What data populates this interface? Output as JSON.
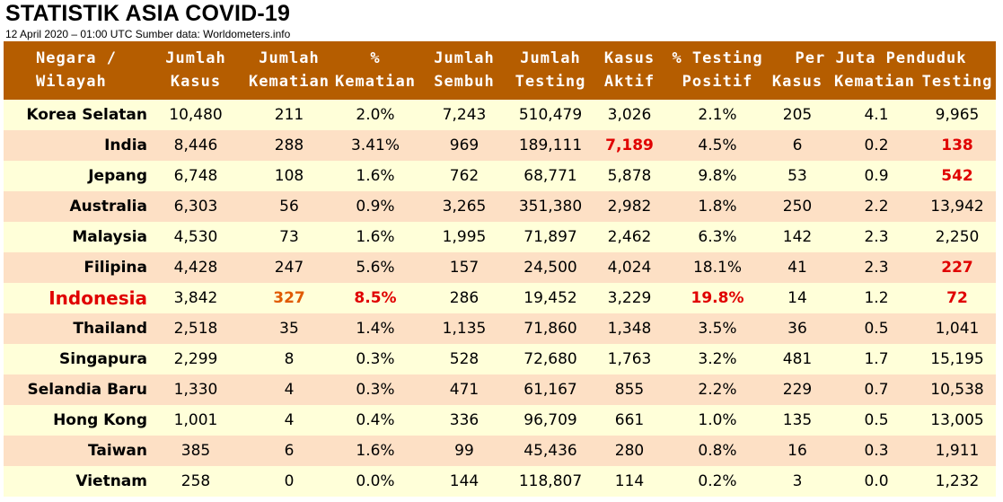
{
  "title": "STATISTIK ASIA COVID-19",
  "subtitle": "12 April 2020 – 01:00 UTC   Sumber data: Worldometers.info",
  "colors": {
    "header_bg": "#b55d00",
    "row_odd": "#ffffd9",
    "row_even": "#fde0c5",
    "highlight_red": "#e00000",
    "highlight_orange": "#e05a00"
  },
  "header": {
    "country": [
      "Negara /",
      "Wilayah"
    ],
    "cases": [
      "Jumlah",
      "Kasus"
    ],
    "deaths": [
      "Jumlah",
      "Kematian"
    ],
    "death_pct": [
      "%",
      "Kematian"
    ],
    "recovered": [
      "Jumlah",
      "Sembuh"
    ],
    "tests": [
      "Jumlah",
      "Testing"
    ],
    "active": [
      "Kasus",
      "Aktif"
    ],
    "positive_pct": [
      "% Testing",
      "Positif"
    ],
    "per_million_title": "Per Juta Penduduk",
    "pm_cases": "Kasus",
    "pm_deaths": "Kematian",
    "pm_tests": "Testing"
  },
  "rows": [
    {
      "country": "Korea Selatan",
      "cases": "10,480",
      "deaths": "211",
      "death_pct": "2.0%",
      "recovered": "7,243",
      "tests": "510,479",
      "active": "3,026",
      "positive_pct": "2.1%",
      "pm_cases": "205",
      "pm_deaths": "4.1",
      "pm_tests": "9,965"
    },
    {
      "country": "India",
      "cases": "8,446",
      "deaths": "288",
      "death_pct": "3.41%",
      "recovered": "969",
      "tests": "189,111",
      "active": "7,189",
      "positive_pct": "4.5%",
      "pm_cases": "6",
      "pm_deaths": "0.2",
      "pm_tests": "138"
    },
    {
      "country": "Jepang",
      "cases": "6,748",
      "deaths": "108",
      "death_pct": "1.6%",
      "recovered": "762",
      "tests": "68,771",
      "active": "5,878",
      "positive_pct": "9.8%",
      "pm_cases": "53",
      "pm_deaths": "0.9",
      "pm_tests": "542"
    },
    {
      "country": "Australia",
      "cases": "6,303",
      "deaths": "56",
      "death_pct": "0.9%",
      "recovered": "3,265",
      "tests": "351,380",
      "active": "2,982",
      "positive_pct": "1.8%",
      "pm_cases": "250",
      "pm_deaths": "2.2",
      "pm_tests": "13,942"
    },
    {
      "country": "Malaysia",
      "cases": "4,530",
      "deaths": "73",
      "death_pct": "1.6%",
      "recovered": "1,995",
      "tests": "71,897",
      "active": "2,462",
      "positive_pct": "6.3%",
      "pm_cases": "142",
      "pm_deaths": "2.3",
      "pm_tests": "2,250"
    },
    {
      "country": "Filipina",
      "cases": "4,428",
      "deaths": "247",
      "death_pct": "5.6%",
      "recovered": "157",
      "tests": "24,500",
      "active": "4,024",
      "positive_pct": "18.1%",
      "pm_cases": "41",
      "pm_deaths": "2.3",
      "pm_tests": "227"
    },
    {
      "country": "Indonesia",
      "cases": "3,842",
      "deaths": "327",
      "death_pct": "8.5%",
      "recovered": "286",
      "tests": "19,452",
      "active": "3,229",
      "positive_pct": "19.8%",
      "pm_cases": "14",
      "pm_deaths": "1.2",
      "pm_tests": "72"
    },
    {
      "country": "Thailand",
      "cases": "2,518",
      "deaths": "35",
      "death_pct": "1.4%",
      "recovered": "1,135",
      "tests": "71,860",
      "active": "1,348",
      "positive_pct": "3.5%",
      "pm_cases": "36",
      "pm_deaths": "0.5",
      "pm_tests": "1,041"
    },
    {
      "country": "Singapura",
      "cases": "2,299",
      "deaths": "8",
      "death_pct": "0.3%",
      "recovered": "528",
      "tests": "72,680",
      "active": "1,763",
      "positive_pct": "3.2%",
      "pm_cases": "481",
      "pm_deaths": "1.7",
      "pm_tests": "15,195"
    },
    {
      "country": "Selandia Baru",
      "cases": "1,330",
      "deaths": "4",
      "death_pct": "0.3%",
      "recovered": "471",
      "tests": "61,167",
      "active": "855",
      "positive_pct": "2.2%",
      "pm_cases": "229",
      "pm_deaths": "0.7",
      "pm_tests": "10,538"
    },
    {
      "country": "Hong Kong",
      "cases": "1,001",
      "deaths": "4",
      "death_pct": "0.4%",
      "recovered": "336",
      "tests": "96,709",
      "active": "661",
      "positive_pct": "1.0%",
      "pm_cases": "135",
      "pm_deaths": "0.5",
      "pm_tests": "13,005"
    },
    {
      "country": "Taiwan",
      "cases": "385",
      "deaths": "6",
      "death_pct": "1.6%",
      "recovered": "99",
      "tests": "45,436",
      "active": "280",
      "positive_pct": "0.8%",
      "pm_cases": "16",
      "pm_deaths": "0.3",
      "pm_tests": "1,911"
    },
    {
      "country": "Vietnam",
      "cases": "258",
      "deaths": "0",
      "death_pct": "0.0%",
      "recovered": "144",
      "tests": "118,807",
      "active": "114",
      "positive_pct": "0.2%",
      "pm_cases": "3",
      "pm_deaths": "0.0",
      "pm_tests": "1,232"
    }
  ]
}
